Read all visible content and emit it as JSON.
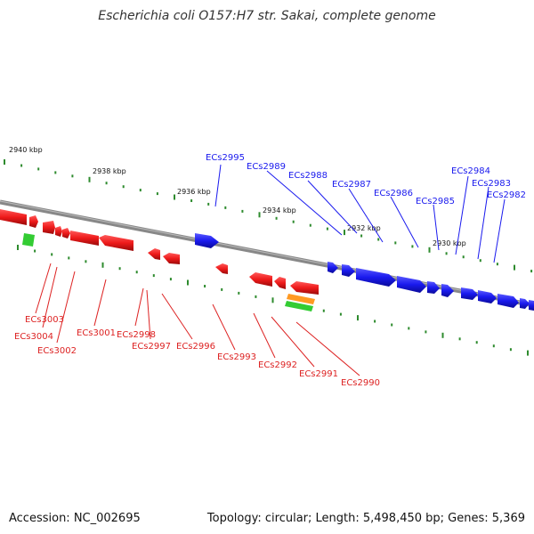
{
  "title": "Escherichia coli O157:H7 str. Sakai, complete genome",
  "footer": {
    "accession": "Accession: NC_002695",
    "summary": "Topology: circular; Length: 5,498,450 bp; Genes: 5,369"
  },
  "colors": {
    "forward_gene": "#1a1aee",
    "reverse_gene": "#ee1a1a",
    "backbone": "#888888",
    "tick": "#2e8b2e",
    "rna_green": "#33cc33",
    "rna_orange": "#ff9922"
  },
  "ticks": [
    {
      "label": "2940 kbp"
    },
    {
      "label": "2938 kbp"
    },
    {
      "label": "2936 kbp"
    },
    {
      "label": "2934 kbp"
    },
    {
      "label": "2932 kbp"
    },
    {
      "label": "2930 kbp"
    }
  ],
  "forward_genes": [
    {
      "label": "ECs2995"
    },
    {
      "label": "ECs2989"
    },
    {
      "label": "ECs2988"
    },
    {
      "label": "ECs2987"
    },
    {
      "label": "ECs2986"
    },
    {
      "label": "ECs2985"
    },
    {
      "label": "ECs2984"
    },
    {
      "label": "ECs2983"
    },
    {
      "label": "ECs2982"
    }
  ],
  "reverse_genes": [
    {
      "label": "ECs3003"
    },
    {
      "label": "ECs3004"
    },
    {
      "label": "ECs3002"
    },
    {
      "label": "ECs3001"
    },
    {
      "label": "ECs2998"
    },
    {
      "label": "ECs2997"
    },
    {
      "label": "ECs2996"
    },
    {
      "label": "ECs2993"
    },
    {
      "label": "ECs2992"
    },
    {
      "label": "ECs2991"
    },
    {
      "label": "ECs2990"
    }
  ]
}
